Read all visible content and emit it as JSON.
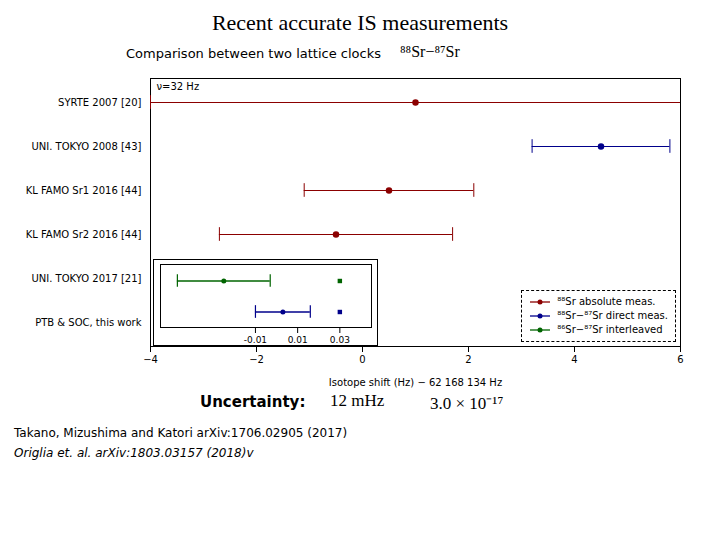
{
  "chart_data": {
    "type": "errorbar",
    "title": "Recent accurate IS measurements",
    "subtitle": "Comparison between two lattice clocks",
    "isotope_label": "⁸⁸Sr−⁸⁷Sr",
    "xlabel": "Isotope shift (Hz) − 62 168 134 Hz",
    "inset_label": "ν=32 Hz",
    "uncertainty_label": "Uncertainty:",
    "uncertainty_val1": "12 mHz",
    "uncertainty_val2": "3.0 × 10⁻¹⁷",
    "ref1": "Takano, Mizushima and Katori arXiv:1706.02905 (2017)",
    "ref2": "Origlia et. al. arXiv:1803.03157 (2018)v",
    "categories": [
      "SYRTE 2007 [20]",
      "UNI. TOKYO 2008 [43]",
      "KL FAMO Sr1 2016 [44]",
      "KL FAMO Sr2 2016 [44]",
      "UNI. TOKYO 2017 [21]",
      "PTB & SOC, this work"
    ],
    "values": [
      1.0,
      4.5,
      0.5,
      -0.5,
      -0.025,
      0.003
    ],
    "errors": [
      5.0,
      1.3,
      1.6,
      2.2,
      0.022,
      0.013
    ],
    "colors": [
      "#8b0000",
      "#00008b",
      "#8b0000",
      "#8b0000",
      "#006400",
      "#00008b"
    ],
    "marker": "circle",
    "xlim": [
      -4,
      6
    ],
    "xticks": [
      -4,
      -2,
      0,
      2,
      4,
      6
    ],
    "legend": "lower right",
    "legend_entries": [
      {
        "name": "⁸⁸Sr absolute meas.",
        "color": "#8b0000"
      },
      {
        "name": "⁸⁸Sr−⁸⁷Sr direct meas.",
        "color": "#00008b"
      },
      {
        "name": "⁸⁶Sr−⁸⁷Sr interleaved",
        "color": "#006400"
      }
    ],
    "inset": {
      "categories": [
        "UNI. TOKYO 2017 [21]",
        "PTB & SOC, this work"
      ],
      "values": [
        -0.025,
        0.003
      ],
      "errors": [
        0.022,
        0.013
      ],
      "colors": [
        "#006400",
        "#00008b"
      ],
      "markers": [
        0.03,
        0.03
      ],
      "xlim": [
        -0.055,
        0.045
      ],
      "xticks": [
        -0.01,
        0.01,
        0.03
      ]
    }
  }
}
